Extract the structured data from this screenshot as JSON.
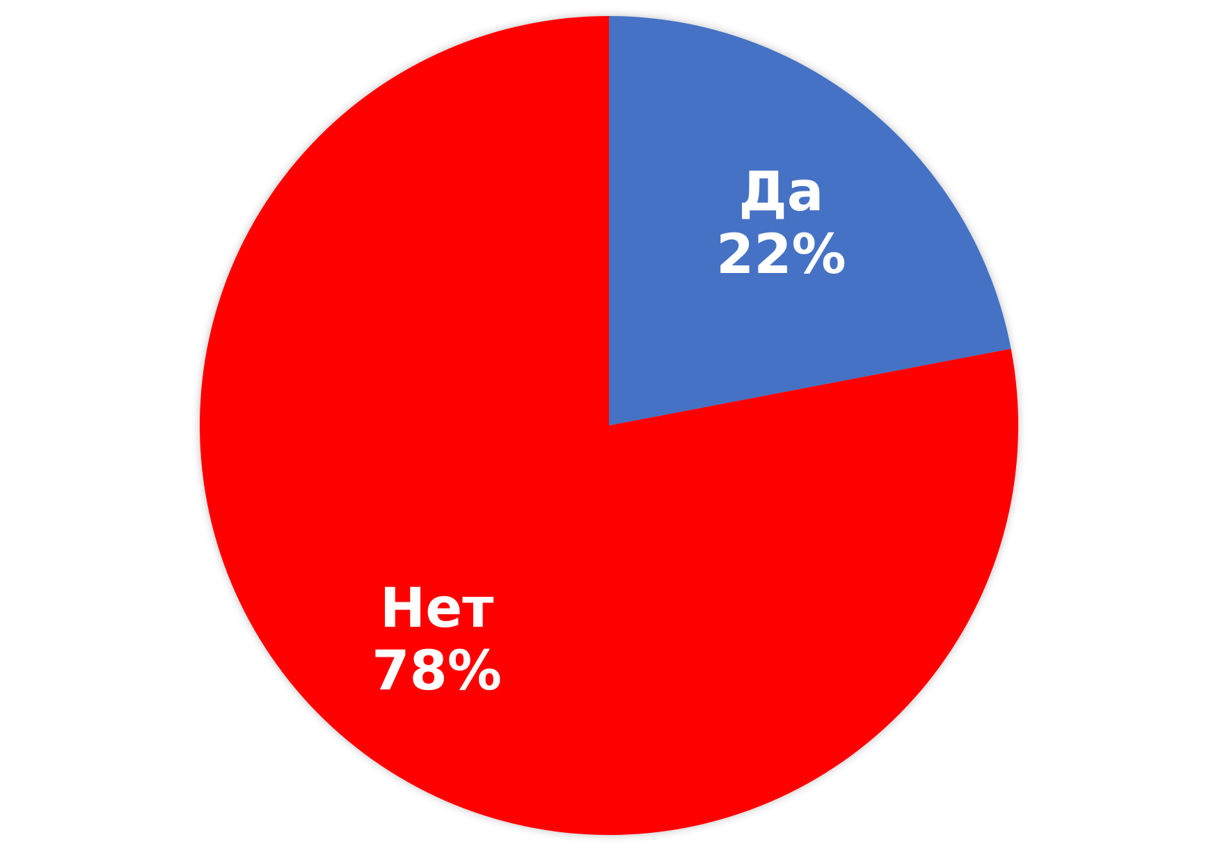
{
  "chart_data": {
    "type": "pie",
    "categories": [
      "Да",
      "Нет"
    ],
    "values": [
      22,
      78
    ],
    "value_labels": [
      "22%",
      "78%"
    ],
    "colors": [
      "#4472C4",
      "#FF0000"
    ],
    "start_angle_deg": 0,
    "direction": "clockwise",
    "legend": "none",
    "data_labels": "inside"
  }
}
